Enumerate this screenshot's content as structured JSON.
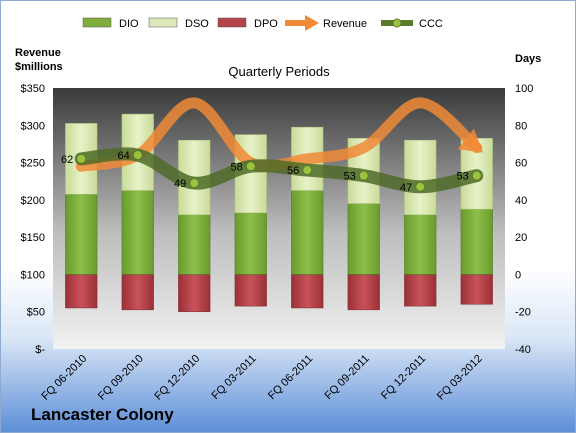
{
  "company_name": "Lancaster Colony",
  "chart_data": {
    "type": "bar",
    "title": "Quarterly Periods",
    "left_axis_label": [
      "Revenue",
      "$millions"
    ],
    "right_axis_label": "Days",
    "categories": [
      "FQ 06-2010",
      "FQ 09-2010",
      "FQ 12-2010",
      "FQ 03-2011",
      "FQ 06-2011",
      "FQ 09-2011",
      "FQ 12-2011",
      "FQ 03-2012"
    ],
    "left_axis": {
      "min": 0,
      "max": 350,
      "step": 50,
      "ticks": [
        "$-",
        "$50",
        "$100",
        "$150",
        "$200",
        "$250",
        "$300",
        "$350"
      ]
    },
    "right_axis": {
      "min": -40,
      "max": 100,
      "step": 20,
      "ticks": [
        "-40",
        "-20",
        "0",
        "20",
        "40",
        "60",
        "80",
        "100"
      ]
    },
    "legend": [
      {
        "name": "DIO",
        "kind": "bar",
        "color": "#7fae3c"
      },
      {
        "name": "DSO",
        "kind": "bar",
        "color": "#dce9b8"
      },
      {
        "name": "DPO",
        "kind": "bar",
        "color": "#b5434b"
      },
      {
        "name": "Revenue",
        "kind": "arrow",
        "color": "#f08a36"
      },
      {
        "name": "CCC",
        "kind": "line",
        "color": "#5a7a2c"
      }
    ],
    "series": [
      {
        "name": "DIO",
        "axis": "right",
        "values": [
          43,
          45,
          32,
          33,
          45,
          38,
          32,
          35
        ]
      },
      {
        "name": "DSO",
        "axis": "right",
        "values": [
          38,
          41,
          40,
          42,
          34,
          35,
          40,
          38
        ]
      },
      {
        "name": "DPO",
        "axis": "right",
        "values": [
          -18,
          -19,
          -20,
          -17,
          -18,
          -19,
          -17,
          -16
        ]
      },
      {
        "name": "Revenue",
        "axis": "left",
        "values": [
          245,
          260,
          330,
          250,
          255,
          270,
          330,
          270
        ]
      },
      {
        "name": "CCC",
        "axis": "right",
        "values": [
          62,
          64,
          49,
          58,
          56,
          53,
          47,
          53
        ]
      }
    ],
    "ccc_labels": [
      "62",
      "64",
      "49",
      "58",
      "56",
      "53",
      "47",
      "53"
    ],
    "legend_position": "top",
    "grid": false
  }
}
